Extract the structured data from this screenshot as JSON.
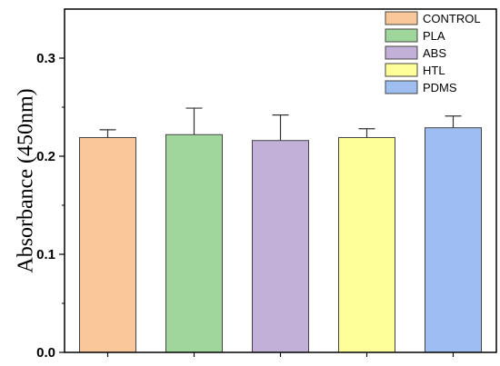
{
  "chart_data": {
    "type": "bar",
    "title": "",
    "xlabel": "",
    "ylabel": "Absorbance (450nm)",
    "ylim": [
      0,
      0.35
    ],
    "yticks": [
      0.0,
      0.1,
      0.2,
      0.3
    ],
    "ytick_labels": [
      "0.0",
      "0.1",
      "0.2",
      "0.3"
    ],
    "grid": false,
    "legend_position": "top-right",
    "categories": [
      "CONTROL",
      "PLA",
      "ABS",
      "HTL",
      "PDMS"
    ],
    "values": [
      0.219,
      0.222,
      0.216,
      0.219,
      0.229
    ],
    "errors": [
      0.008,
      0.027,
      0.026,
      0.009,
      0.012
    ],
    "colors": [
      "#F9C79A",
      "#9ED69B",
      "#C2B0D8",
      "#FFFF99",
      "#9EBEF2"
    ],
    "legend": [
      "CONTROL",
      "PLA",
      "ABS",
      "HTL",
      "PDMS"
    ]
  }
}
